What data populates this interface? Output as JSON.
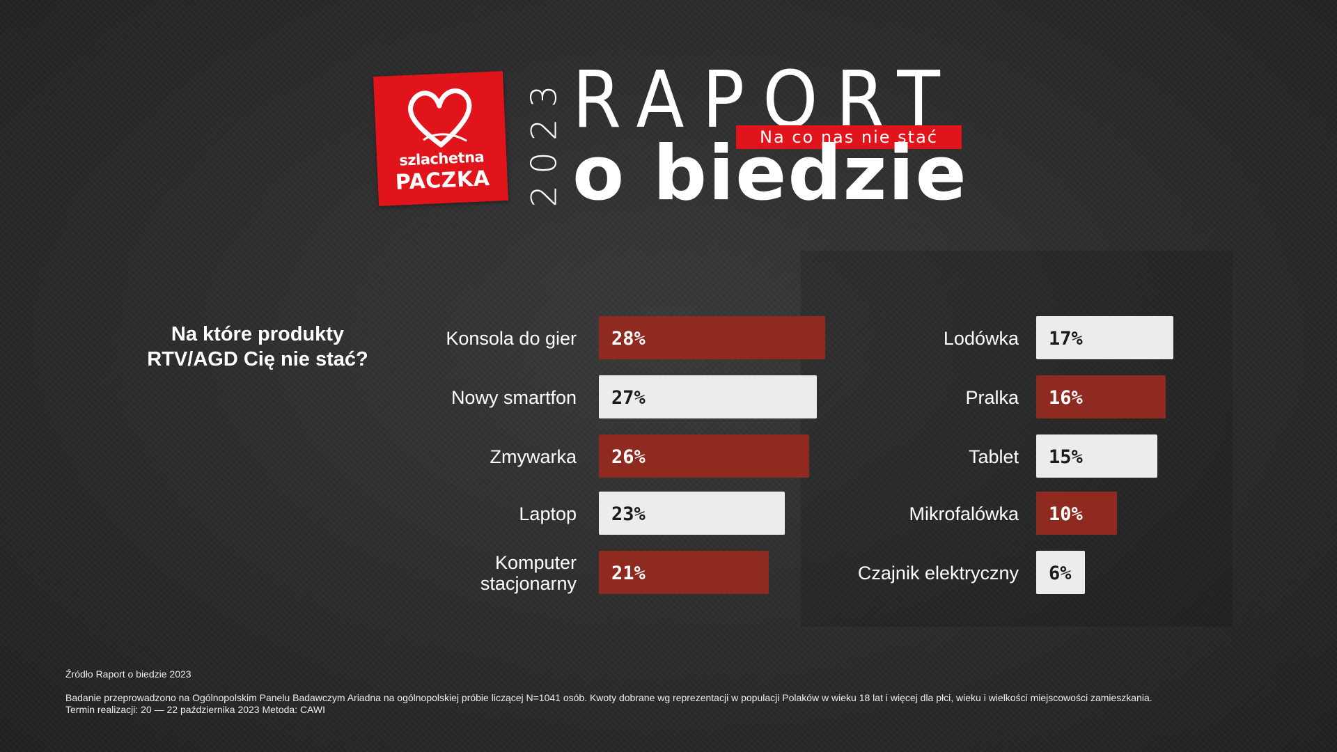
{
  "header": {
    "logo_line1": "szlachetna",
    "logo_line2": "PACZKA",
    "year": "2023",
    "title_top": "RAPORT",
    "title_tag": "Na co nas nie stać",
    "title_bottom": "o biedzie"
  },
  "question": {
    "line1": "Na które produkty",
    "line2": "RTV/AGD Cię nie stać?"
  },
  "colors": {
    "brand_red": "#e1141b",
    "bar_red": "#8e2a1f",
    "bar_white": "#ececec"
  },
  "chart_data": {
    "type": "bar",
    "orientation": "horizontal",
    "value_suffix": "%",
    "max": 28,
    "groups": [
      {
        "items": [
          {
            "label": [
              "Konsola do gier"
            ],
            "value": 28,
            "style": "red"
          },
          {
            "label": [
              "Nowy smartfon"
            ],
            "value": 27,
            "style": "white"
          },
          {
            "label": [
              "Zmywarka"
            ],
            "value": 26,
            "style": "red"
          },
          {
            "label": [
              "Laptop"
            ],
            "value": 23,
            "style": "white"
          },
          {
            "label": [
              "Komputer",
              "stacjonarny"
            ],
            "value": 21,
            "style": "red"
          }
        ]
      },
      {
        "items": [
          {
            "label": [
              "Lodówka"
            ],
            "value": 17,
            "style": "white"
          },
          {
            "label": [
              "Pralka"
            ],
            "value": 16,
            "style": "red"
          },
          {
            "label": [
              "Tablet"
            ],
            "value": 15,
            "style": "white"
          },
          {
            "label": [
              "Mikrofalówka"
            ],
            "value": 10,
            "style": "red"
          },
          {
            "label": [
              "Czajnik elektryczny"
            ],
            "value": 6,
            "style": "white"
          }
        ]
      }
    ]
  },
  "footer": {
    "source": "Źródło Raport o biedzie 2023",
    "note_line1": "Badanie przeprowadzono na Ogólnopolskim Panelu Badawczym Ariadna na ogólnopolskiej próbie liczącej N=1041 osób. Kwoty dobrane wg reprezentacji w populacji Polaków w wieku 18 lat i więcej dla płci, wieku i wielkości miejscowości zamieszkania.",
    "note_line2": "Termin realizacji: 20 — 22 października 2023 Metoda: CAWI"
  }
}
